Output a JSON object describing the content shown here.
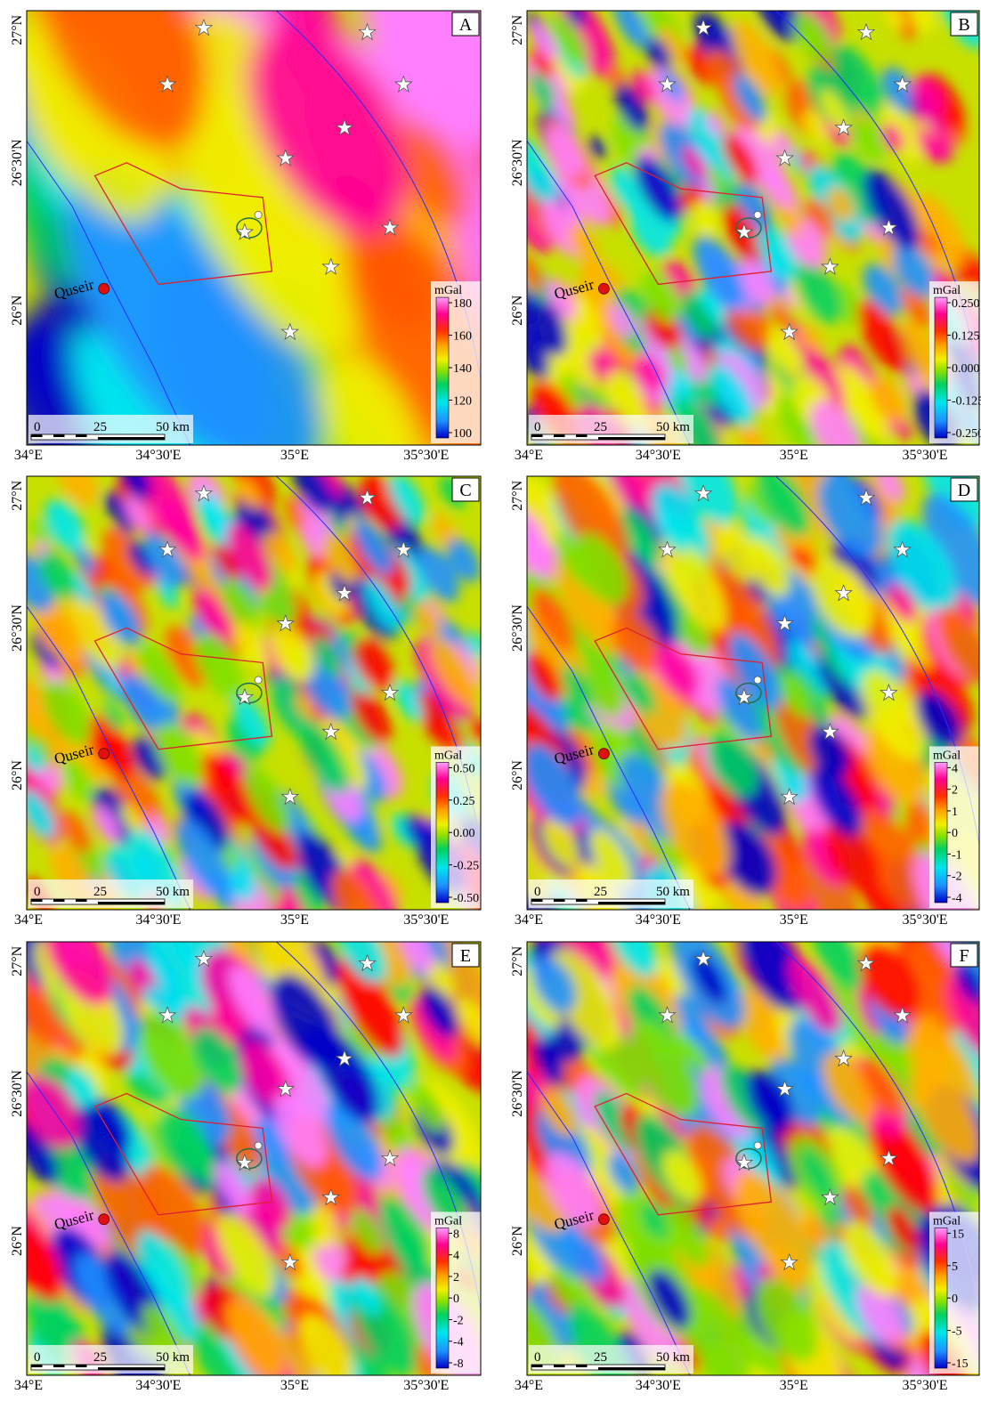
{
  "panels": [
    {
      "label": "A",
      "unit": "mGal",
      "colorbar_ticks": [
        "180",
        "160",
        "140",
        "120",
        "100"
      ]
    },
    {
      "label": "B",
      "unit": "mGal",
      "colorbar_ticks": [
        "0.250",
        "0.125",
        "0.000",
        "-0.125",
        "-0.250"
      ]
    },
    {
      "label": "C",
      "unit": "mGal",
      "colorbar_ticks": [
        "0.50",
        "0.25",
        "0.00",
        "-0.25",
        "-0.50"
      ]
    },
    {
      "label": "D",
      "unit": "mGal",
      "colorbar_ticks": [
        "4",
        "2",
        "1",
        "0",
        "-1",
        "-2",
        "-4"
      ]
    },
    {
      "label": "E",
      "unit": "mGal",
      "colorbar_ticks": [
        "8",
        "4",
        "2",
        "0",
        "-2",
        "-4",
        "-8"
      ]
    },
    {
      "label": "F",
      "unit": "mGal",
      "colorbar_ticks": [
        "15",
        "5",
        "0",
        "-5",
        "-15"
      ]
    }
  ],
  "x_ticks": [
    "34°E",
    "34°30'E",
    "35°E",
    "35°30'E"
  ],
  "y_ticks": [
    "27°N",
    "26°30'N",
    "26°N"
  ],
  "place": "Quseir",
  "scale_bar": [
    "0",
    "25",
    "50 km"
  ]
}
